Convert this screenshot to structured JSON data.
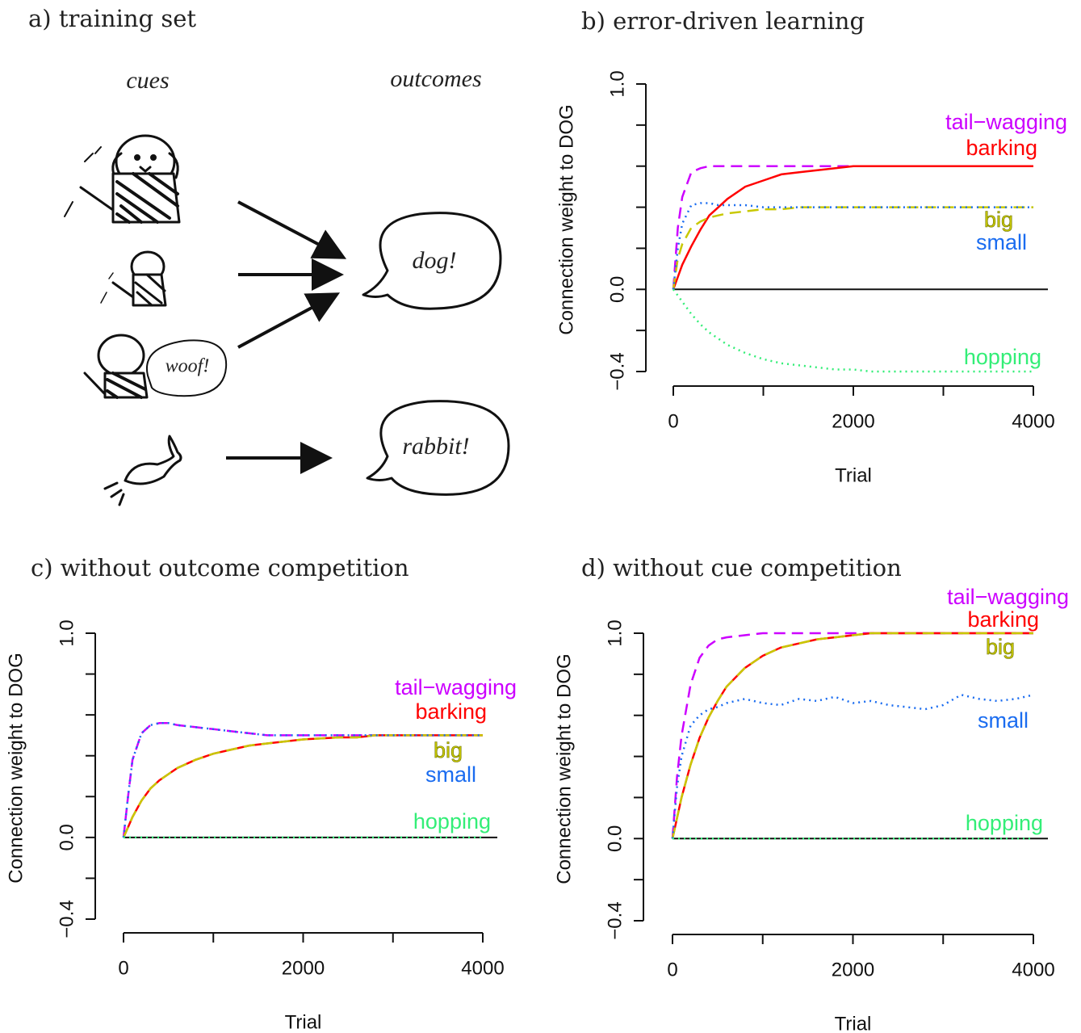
{
  "diagram": {
    "title": "a) training set",
    "cues_label": "cues",
    "outcomes_label": "outcomes",
    "woof": "woof!",
    "dog": "dog!",
    "rabbit": "rabbit!"
  },
  "chart_data": [
    {
      "type": "line",
      "title": "b) error-driven learning",
      "xlabel": "Trial",
      "ylabel": "Connection weight to DOG",
      "xlim": [
        0,
        4000
      ],
      "ylim": [
        -0.4,
        1.0
      ],
      "xticks": [
        0,
        {
          "value": 1000,
          "label": null
        },
        2000,
        {
          "value": 3000,
          "label": null
        },
        4000
      ],
      "yticks": [
        {
          "value": -0.4,
          "label": "−0.4"
        },
        {
          "value": -0.2,
          "label": null
        },
        {
          "value": 0,
          "label": "0.0"
        },
        {
          "value": 0.2,
          "label": null
        },
        {
          "value": 0.4,
          "label": null
        },
        {
          "value": 0.6,
          "label": null
        },
        {
          "value": 0.8,
          "label": null
        },
        {
          "value": 1.0,
          "label": "1.0"
        }
      ],
      "hline": 0,
      "x": [
        0,
        50,
        100,
        200,
        300,
        400,
        500,
        600,
        800,
        1000,
        1200,
        1400,
        1600,
        1800,
        2000,
        2200,
        2400,
        2600,
        2800,
        3000,
        3200,
        3400,
        3600,
        3800,
        4000
      ],
      "series": [
        {
          "name": "tail−wagging",
          "color": "#cc00ff",
          "linestyle": "dashed",
          "values": [
            0,
            0.3,
            0.45,
            0.57,
            0.59,
            0.6,
            0.6,
            0.6,
            0.6,
            0.6,
            0.6,
            0.6,
            0.6,
            0.6,
            0.6,
            0.6,
            0.6,
            0.6,
            0.6,
            0.6,
            0.6,
            0.6,
            0.6,
            0.6,
            0.6
          ]
        },
        {
          "name": "barking",
          "color": "#ff0000",
          "linestyle": "solid",
          "values": [
            0,
            0.06,
            0.12,
            0.21,
            0.29,
            0.36,
            0.4,
            0.44,
            0.5,
            0.53,
            0.56,
            0.57,
            0.58,
            0.59,
            0.6,
            0.6,
            0.6,
            0.6,
            0.6,
            0.6,
            0.6,
            0.6,
            0.6,
            0.6,
            0.6
          ]
        },
        {
          "name": "big",
          "color": "#c8c800",
          "linestyle": "dashed",
          "values": [
            0,
            0.15,
            0.22,
            0.3,
            0.33,
            0.35,
            0.36,
            0.37,
            0.38,
            0.39,
            0.39,
            0.4,
            0.4,
            0.4,
            0.4,
            0.4,
            0.4,
            0.4,
            0.4,
            0.4,
            0.4,
            0.4,
            0.4,
            0.4,
            0.4
          ]
        },
        {
          "name": "small",
          "color": "#1a6cf0",
          "linestyle": "dotted",
          "values": [
            0,
            0.2,
            0.32,
            0.41,
            0.42,
            0.42,
            0.41,
            0.41,
            0.41,
            0.4,
            0.4,
            0.4,
            0.4,
            0.4,
            0.4,
            0.4,
            0.4,
            0.4,
            0.4,
            0.4,
            0.4,
            0.4,
            0.4,
            0.4,
            0.4
          ]
        },
        {
          "name": "hopping",
          "color": "#33ee77",
          "linestyle": "dotted",
          "values": [
            0,
            -0.03,
            -0.06,
            -0.12,
            -0.17,
            -0.21,
            -0.24,
            -0.27,
            -0.31,
            -0.34,
            -0.36,
            -0.37,
            -0.38,
            -0.39,
            -0.39,
            -0.4,
            -0.4,
            -0.4,
            -0.4,
            -0.4,
            -0.4,
            -0.4,
            -0.4,
            -0.4,
            -0.4
          ]
        }
      ]
    },
    {
      "type": "line",
      "title": "c) without outcome competition",
      "xlabel": "Trial",
      "ylabel": "Connection weight to DOG",
      "xlim": [
        0,
        4000
      ],
      "ylim": [
        -0.4,
        1.0
      ],
      "xticks": [
        0,
        {
          "value": 1000,
          "label": null
        },
        2000,
        {
          "value": 3000,
          "label": null
        },
        4000
      ],
      "yticks": [
        {
          "value": -0.4,
          "label": "−0.4"
        },
        {
          "value": -0.2,
          "label": null
        },
        {
          "value": 0,
          "label": "0.0"
        },
        {
          "value": 0.2,
          "label": null
        },
        {
          "value": 0.4,
          "label": null
        },
        {
          "value": 0.6,
          "label": null
        },
        {
          "value": 0.8,
          "label": null
        },
        {
          "value": 1.0,
          "label": "1.0"
        }
      ],
      "hline": 0,
      "x": [
        0,
        50,
        100,
        200,
        300,
        400,
        500,
        600,
        800,
        1000,
        1200,
        1400,
        1600,
        1800,
        2000,
        2200,
        2400,
        2600,
        2800,
        3000,
        3200,
        3400,
        3600,
        3800,
        4000
      ],
      "series": [
        {
          "name": "tail−wagging",
          "color": "#cc00ff",
          "linestyle": "dashed",
          "values": [
            0,
            0.2,
            0.38,
            0.51,
            0.55,
            0.56,
            0.56,
            0.55,
            0.54,
            0.53,
            0.52,
            0.51,
            0.5,
            0.5,
            0.5,
            0.5,
            0.5,
            0.5,
            0.5,
            0.5,
            0.5,
            0.5,
            0.5,
            0.5,
            0.5
          ]
        },
        {
          "name": "barking",
          "color": "#ff0000",
          "linestyle": "solid",
          "values": [
            0,
            0.05,
            0.1,
            0.18,
            0.24,
            0.28,
            0.31,
            0.34,
            0.38,
            0.41,
            0.43,
            0.45,
            0.46,
            0.47,
            0.48,
            0.485,
            0.49,
            0.49,
            0.5,
            0.5,
            0.5,
            0.5,
            0.5,
            0.5,
            0.5
          ]
        },
        {
          "name": "big",
          "color": "#c8c800",
          "linestyle": "dashed",
          "values": [
            0,
            0.05,
            0.1,
            0.18,
            0.24,
            0.28,
            0.31,
            0.34,
            0.38,
            0.41,
            0.43,
            0.45,
            0.46,
            0.47,
            0.48,
            0.485,
            0.49,
            0.49,
            0.5,
            0.5,
            0.5,
            0.5,
            0.5,
            0.5,
            0.5
          ]
        },
        {
          "name": "small",
          "color": "#1a6cf0",
          "linestyle": "dotted",
          "values": [
            0,
            0.2,
            0.38,
            0.51,
            0.55,
            0.56,
            0.56,
            0.55,
            0.54,
            0.53,
            0.52,
            0.51,
            0.5,
            0.5,
            0.5,
            0.5,
            0.5,
            0.5,
            0.5,
            0.5,
            0.5,
            0.5,
            0.5,
            0.5,
            0.5
          ]
        },
        {
          "name": "hopping",
          "color": "#33ee77",
          "linestyle": "dotted",
          "values": [
            0,
            0,
            0,
            0,
            0,
            0,
            0,
            0,
            0,
            0,
            0,
            0,
            0,
            0,
            0,
            0,
            0,
            0,
            0,
            0,
            0,
            0,
            0,
            0,
            0
          ]
        }
      ]
    },
    {
      "type": "line",
      "title": "d) without cue competition",
      "xlabel": "Trial",
      "ylabel": "Connection weight to DOG",
      "xlim": [
        0,
        4000
      ],
      "ylim": [
        -0.4,
        1.0
      ],
      "xticks": [
        0,
        {
          "value": 1000,
          "label": null
        },
        2000,
        {
          "value": 3000,
          "label": null
        },
        4000
      ],
      "yticks": [
        {
          "value": -0.4,
          "label": "−0.4"
        },
        {
          "value": -0.2,
          "label": null
        },
        {
          "value": 0,
          "label": "0.0"
        },
        {
          "value": 0.2,
          "label": null
        },
        {
          "value": 0.4,
          "label": null
        },
        {
          "value": 0.6,
          "label": null
        },
        {
          "value": 0.8,
          "label": null
        },
        {
          "value": 1.0,
          "label": "1.0"
        }
      ],
      "hline": 0,
      "x": [
        0,
        50,
        100,
        200,
        300,
        400,
        500,
        600,
        800,
        1000,
        1200,
        1400,
        1600,
        1800,
        2000,
        2200,
        2400,
        2600,
        2800,
        3000,
        3200,
        3400,
        3600,
        3800,
        4000
      ],
      "series": [
        {
          "name": "tail−wagging",
          "color": "#cc00ff",
          "linestyle": "dashed",
          "values": [
            0,
            0.3,
            0.5,
            0.75,
            0.88,
            0.94,
            0.97,
            0.98,
            0.99,
            1.0,
            1.0,
            1.0,
            1.0,
            1.0,
            1.0,
            1.0,
            1.0,
            1.0,
            1.0,
            1.0,
            1.0,
            1.0,
            1.0,
            1.0,
            1.0
          ]
        },
        {
          "name": "barking",
          "color": "#ff0000",
          "linestyle": "solid",
          "values": [
            0,
            0.1,
            0.2,
            0.36,
            0.49,
            0.59,
            0.67,
            0.74,
            0.83,
            0.89,
            0.93,
            0.95,
            0.97,
            0.98,
            0.99,
            1.0,
            1.0,
            1.0,
            1.0,
            1.0,
            1.0,
            1.0,
            1.0,
            1.0,
            1.0
          ]
        },
        {
          "name": "big",
          "color": "#c8c800",
          "linestyle": "dashed",
          "values": [
            0,
            0.1,
            0.2,
            0.36,
            0.49,
            0.59,
            0.67,
            0.74,
            0.83,
            0.89,
            0.93,
            0.95,
            0.97,
            0.98,
            0.99,
            1.0,
            1.0,
            1.0,
            1.0,
            1.0,
            1.0,
            1.0,
            1.0,
            1.0,
            1.0
          ]
        },
        {
          "name": "small",
          "color": "#1a6cf0",
          "linestyle": "dotted",
          "values": [
            0,
            0.25,
            0.4,
            0.55,
            0.6,
            0.63,
            0.64,
            0.66,
            0.68,
            0.66,
            0.65,
            0.68,
            0.67,
            0.69,
            0.66,
            0.67,
            0.65,
            0.64,
            0.63,
            0.65,
            0.7,
            0.68,
            0.67,
            0.68,
            0.7
          ]
        },
        {
          "name": "hopping",
          "color": "#33ee77",
          "linestyle": "dotted",
          "values": [
            0,
            0,
            0,
            0,
            0,
            0,
            0,
            0,
            0,
            0,
            0,
            0,
            0,
            0,
            0,
            0,
            0,
            0,
            0,
            0,
            0,
            0,
            0,
            0,
            0
          ]
        }
      ]
    }
  ]
}
